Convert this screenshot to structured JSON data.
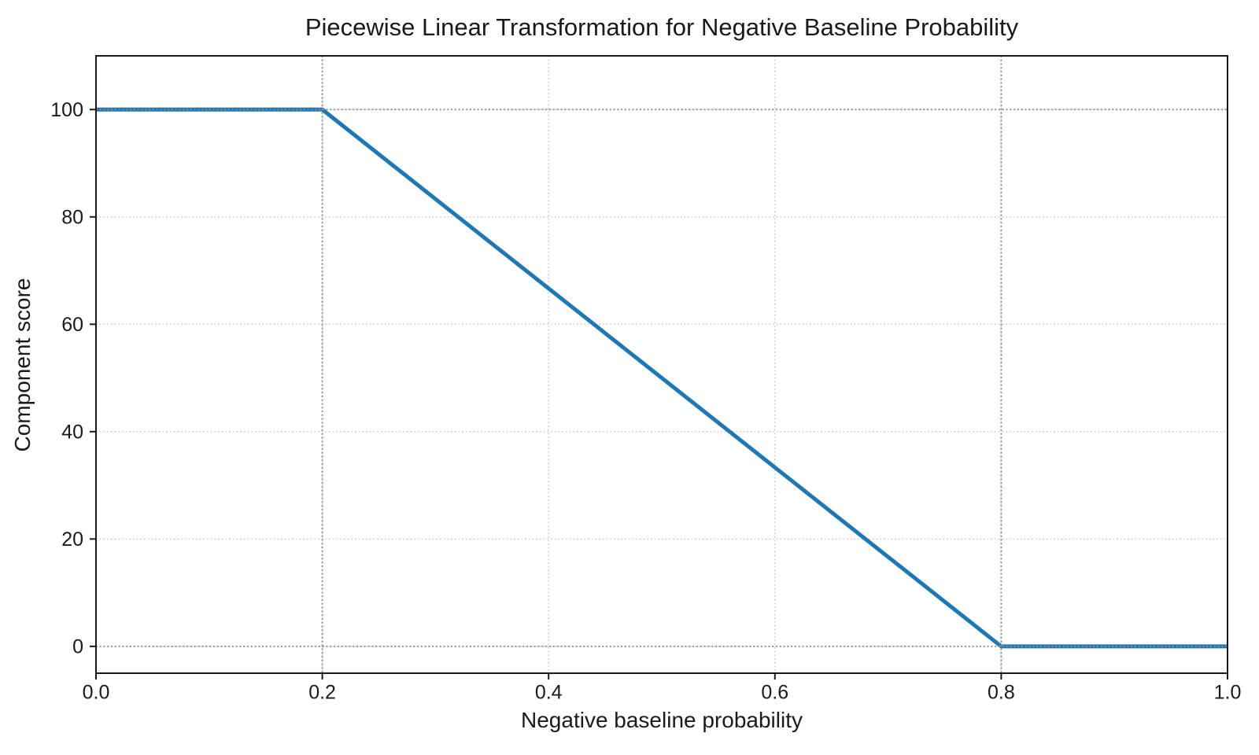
{
  "chart_data": {
    "type": "line",
    "title": "Piecewise Linear Transformation for Negative Baseline Probability",
    "xlabel": "Negative baseline probability",
    "ylabel": "Component score",
    "xlim": [
      0.0,
      1.0
    ],
    "ylim": [
      -5,
      110
    ],
    "grid": true,
    "legend": false,
    "x_ticks": [
      {
        "value": 0.0,
        "label": "0.0"
      },
      {
        "value": 0.2,
        "label": "0.2"
      },
      {
        "value": 0.4,
        "label": "0.4"
      },
      {
        "value": 0.6,
        "label": "0.6"
      },
      {
        "value": 0.8,
        "label": "0.8"
      },
      {
        "value": 1.0,
        "label": "1.0"
      }
    ],
    "y_ticks": [
      {
        "value": 0,
        "label": "0"
      },
      {
        "value": 20,
        "label": "20"
      },
      {
        "value": 40,
        "label": "40"
      },
      {
        "value": 60,
        "label": "60"
      },
      {
        "value": 80,
        "label": "80"
      },
      {
        "value": 100,
        "label": "100"
      }
    ],
    "series": [
      {
        "name": "component-score",
        "color": "#1f77b4",
        "line_width": 5,
        "points": [
          [
            0.0,
            100
          ],
          [
            0.2,
            100
          ],
          [
            0.8,
            0
          ],
          [
            1.0,
            0
          ]
        ]
      }
    ],
    "reference_lines": [
      {
        "axis": "x",
        "value": 0.2
      },
      {
        "axis": "x",
        "value": 0.8
      },
      {
        "axis": "y",
        "value": 100
      },
      {
        "axis": "y",
        "value": 0
      }
    ],
    "colors": {
      "line": "#1f77b4",
      "grid": "#cbcbcb",
      "reference": "#8f8f8f",
      "axis": "#1a1a1a",
      "background": "#ffffff"
    }
  }
}
